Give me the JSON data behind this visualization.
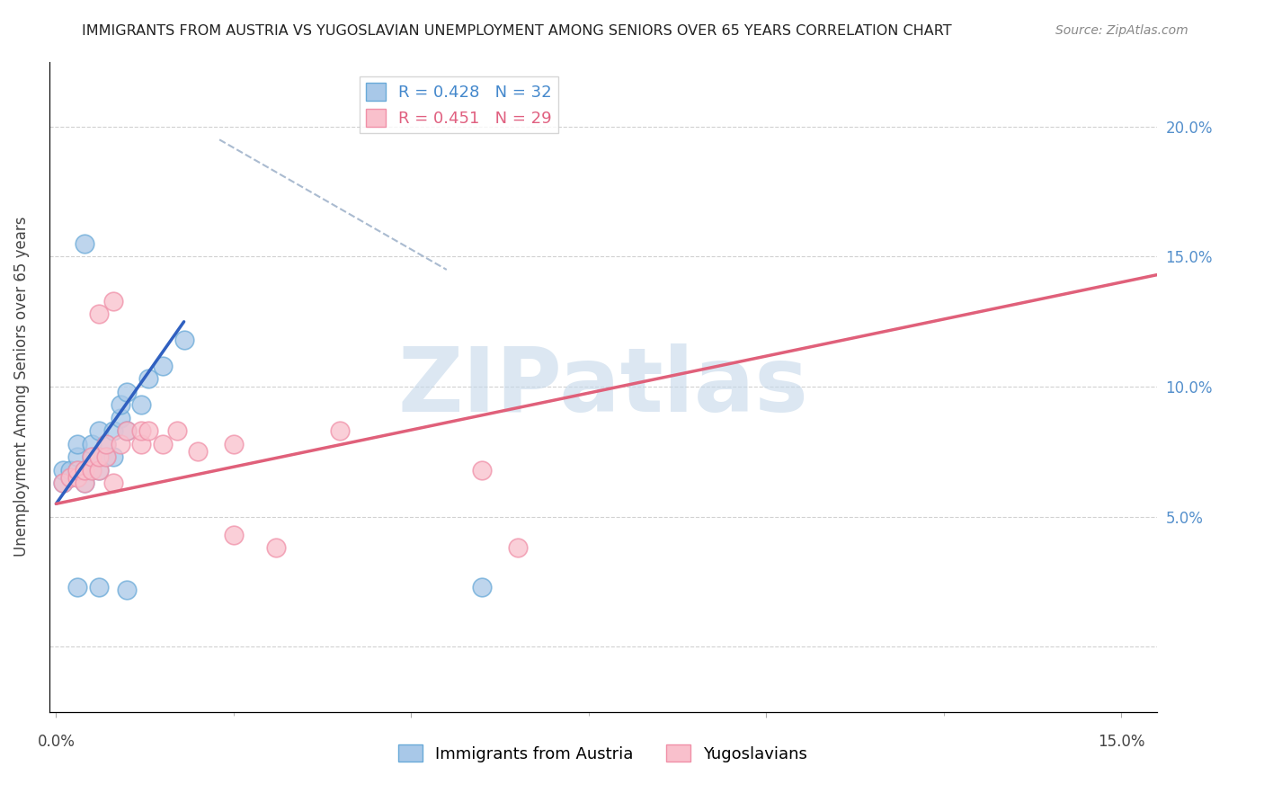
{
  "title": "IMMIGRANTS FROM AUSTRIA VS YUGOSLAVIAN UNEMPLOYMENT AMONG SENIORS OVER 65 YEARS CORRELATION CHART",
  "source": "Source: ZipAtlas.com",
  "ylabel": "Unemployment Among Seniors over 65 years",
  "xlim": [
    -0.001,
    0.155
  ],
  "ylim": [
    -0.025,
    0.225
  ],
  "xticks": [
    0.0,
    0.05,
    0.1,
    0.15
  ],
  "xtick_labels": [
    "0.0%",
    "",
    "",
    ""
  ],
  "xtick_labels_pos": {
    "0.0": "0.0%",
    "0.15": "15.0%"
  },
  "yticks": [
    0.0,
    0.05,
    0.1,
    0.15,
    0.2
  ],
  "ytick_labels_right": [
    "",
    "5.0%",
    "10.0%",
    "15.0%",
    "20.0%"
  ],
  "legend_entries": [
    {
      "label": "R = 0.428   N = 32",
      "color_face": "#a8c8e8",
      "color_edge": "#7ab0e0"
    },
    {
      "label": "R = 0.451   N = 29",
      "color_face": "#f9c0cc",
      "color_edge": "#f090a8"
    }
  ],
  "blue_scatter": [
    [
      0.001,
      0.063
    ],
    [
      0.001,
      0.068
    ],
    [
      0.002,
      0.065
    ],
    [
      0.002,
      0.068
    ],
    [
      0.003,
      0.068
    ],
    [
      0.003,
      0.073
    ],
    [
      0.003,
      0.078
    ],
    [
      0.004,
      0.063
    ],
    [
      0.004,
      0.068
    ],
    [
      0.005,
      0.068
    ],
    [
      0.005,
      0.073
    ],
    [
      0.005,
      0.078
    ],
    [
      0.006,
      0.068
    ],
    [
      0.006,
      0.073
    ],
    [
      0.006,
      0.083
    ],
    [
      0.007,
      0.073
    ],
    [
      0.007,
      0.078
    ],
    [
      0.008,
      0.073
    ],
    [
      0.008,
      0.083
    ],
    [
      0.009,
      0.088
    ],
    [
      0.009,
      0.093
    ],
    [
      0.01,
      0.083
    ],
    [
      0.01,
      0.098
    ],
    [
      0.012,
      0.093
    ],
    [
      0.013,
      0.103
    ],
    [
      0.015,
      0.108
    ],
    [
      0.018,
      0.118
    ],
    [
      0.003,
      0.023
    ],
    [
      0.006,
      0.023
    ],
    [
      0.01,
      0.022
    ],
    [
      0.004,
      0.155
    ],
    [
      0.06,
      0.023
    ]
  ],
  "pink_scatter": [
    [
      0.001,
      0.063
    ],
    [
      0.002,
      0.065
    ],
    [
      0.003,
      0.065
    ],
    [
      0.003,
      0.068
    ],
    [
      0.004,
      0.063
    ],
    [
      0.004,
      0.068
    ],
    [
      0.005,
      0.068
    ],
    [
      0.005,
      0.073
    ],
    [
      0.006,
      0.068
    ],
    [
      0.006,
      0.073
    ],
    [
      0.007,
      0.073
    ],
    [
      0.007,
      0.078
    ],
    [
      0.008,
      0.063
    ],
    [
      0.009,
      0.078
    ],
    [
      0.01,
      0.083
    ],
    [
      0.012,
      0.078
    ],
    [
      0.012,
      0.083
    ],
    [
      0.013,
      0.083
    ],
    [
      0.015,
      0.078
    ],
    [
      0.017,
      0.083
    ],
    [
      0.02,
      0.075
    ],
    [
      0.025,
      0.078
    ],
    [
      0.04,
      0.083
    ],
    [
      0.06,
      0.068
    ],
    [
      0.065,
      0.038
    ],
    [
      0.006,
      0.128
    ],
    [
      0.008,
      0.133
    ],
    [
      0.025,
      0.043
    ],
    [
      0.031,
      0.038
    ]
  ],
  "blue_line_x": [
    0.0,
    0.018
  ],
  "blue_line_y": [
    0.055,
    0.125
  ],
  "pink_line_x": [
    0.0,
    0.155
  ],
  "pink_line_y": [
    0.055,
    0.143
  ],
  "dashed_line_x": [
    0.023,
    0.055
  ],
  "dashed_line_y": [
    0.195,
    0.145
  ],
  "watermark": "ZIPatlas",
  "watermark_color": "#c5d8ea",
  "legend_series": [
    {
      "label": "Immigrants from Austria",
      "color_face": "#a8c8e8",
      "color_edge": "#7ab0e0"
    },
    {
      "label": "Yugoslavians",
      "color_face": "#f9c0cc",
      "color_edge": "#f090a8"
    }
  ]
}
